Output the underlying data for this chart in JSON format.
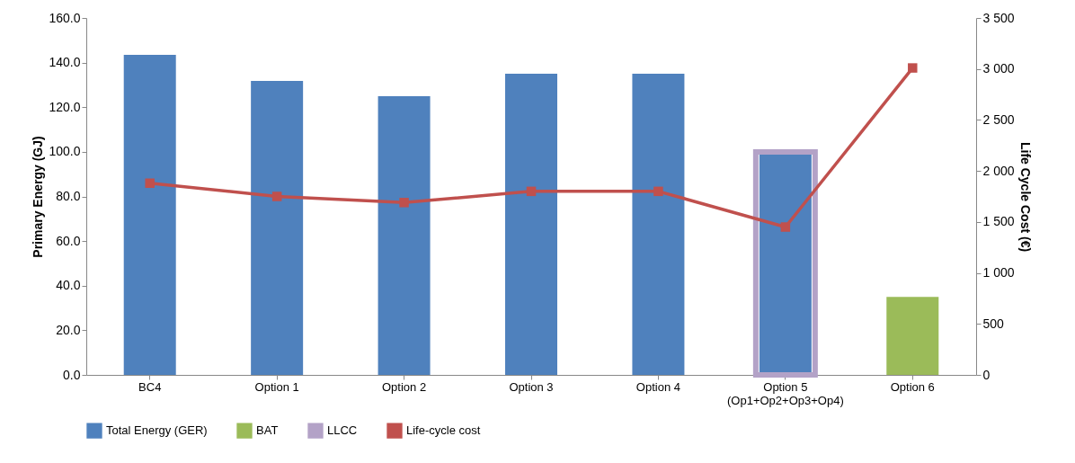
{
  "chart_data": {
    "type": "bar",
    "categories": [
      "BC4",
      "Option 1",
      "Option 2",
      "Option 3",
      "Option 4",
      "Option 5\n(Op1+Op2+Op3+Op4)",
      "Option 6"
    ],
    "series": [
      {
        "name": "Total Energy (GER)",
        "color": "#4f81bd",
        "values": [
          143.5,
          131.8,
          124.9,
          135.0,
          135.0,
          100.0,
          null
        ]
      },
      {
        "name": "BAT",
        "color": "#9bbb59",
        "values": [
          null,
          null,
          null,
          null,
          null,
          null,
          35.0
        ]
      },
      {
        "name": "LLCC",
        "color": "#b3a2c7",
        "values": [
          null,
          null,
          null,
          null,
          null,
          100.0,
          null
        ]
      },
      {
        "name": "Life-cycle cost",
        "type": "line",
        "axis": "y2",
        "color": "#c0504d",
        "values": [
          1880,
          1750,
          1690,
          1800,
          1800,
          1450,
          3010
        ]
      }
    ],
    "ylabel": "Primary Energy (GJ)",
    "y2label": "Life Cycle Cost (€)",
    "ylim": [
      0,
      160
    ],
    "yticks": [
      {
        "value": 0,
        "label": "0.0"
      },
      {
        "value": 20,
        "label": "20.0"
      },
      {
        "value": 40,
        "label": "40.0"
      },
      {
        "value": 60,
        "label": "60.0"
      },
      {
        "value": 80,
        "label": "80.0"
      },
      {
        "value": 100,
        "label": "100.0"
      },
      {
        "value": 120,
        "label": "120.0"
      },
      {
        "value": 140,
        "label": "140.0"
      },
      {
        "value": 160,
        "label": "160.0"
      }
    ],
    "y2lim": [
      0,
      3500
    ],
    "y2ticks": [
      0,
      500,
      {
        "value": 1000,
        "label": "1 000"
      },
      {
        "value": 1500,
        "label": "1 500"
      },
      {
        "value": 2000,
        "label": "2 000"
      },
      {
        "value": 2500,
        "label": "2 500"
      },
      {
        "value": 3000,
        "label": "3 000"
      },
      {
        "value": 3500,
        "label": "3 500"
      }
    ],
    "legend": "bottom",
    "marker": "square",
    "grid": false
  }
}
